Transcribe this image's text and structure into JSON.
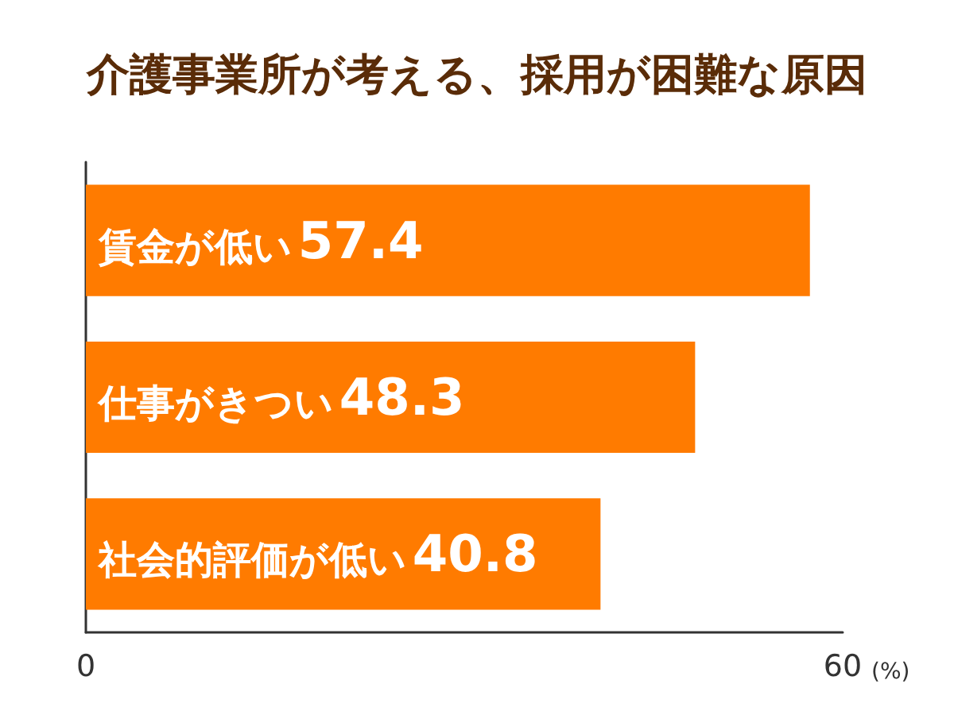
{
  "chart_data": {
    "type": "bar",
    "orientation": "horizontal",
    "title": "介護事業所が考える、採用が困難な原因",
    "xlabel": "(%)",
    "categories": [
      "賃金が低い",
      "仕事がきつい",
      "社会的評価が低い"
    ],
    "values": [
      57.4,
      48.3,
      40.8
    ],
    "color": "#ff7b00",
    "xlim": [
      0,
      60
    ],
    "xticks": [
      0,
      60
    ],
    "data_labels": true
  }
}
